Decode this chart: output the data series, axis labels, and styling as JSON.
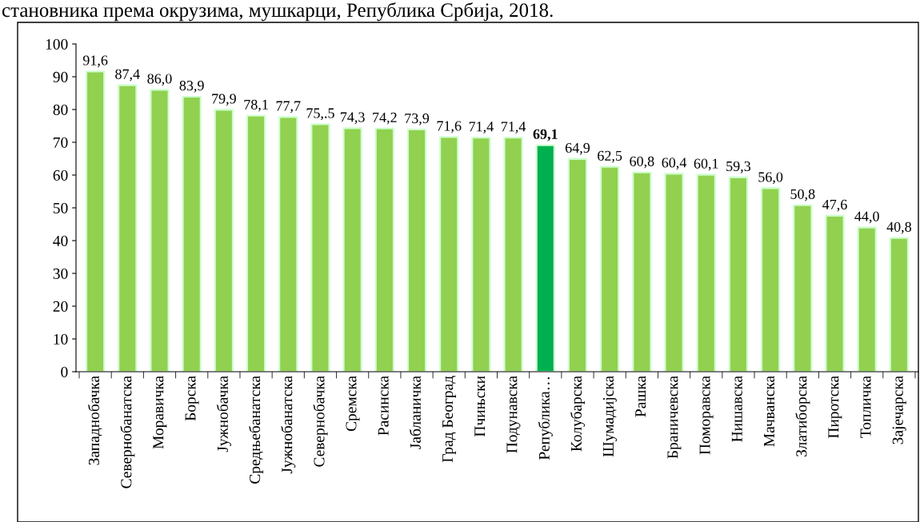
{
  "chart_data": {
    "type": "bar",
    "title": "становника према окрузима, мушкарци, Република Србија, 2018.",
    "categories": [
      "Западнобачка",
      "Севернобанатска",
      "Моравичка",
      "Борска",
      "Јужнобачка",
      "Средњебанатска",
      "Јужнобанатска",
      "Севернобачка",
      "Сремска",
      "Расинска",
      "Јабланичка",
      "Град Београд",
      "Пчињски",
      "Подунавска",
      "Република…",
      "Колубарска",
      "Шумадијска",
      "Рашка",
      "Браничевска",
      "Поморавска",
      "Нишавска",
      "Мачванска",
      "Златиборска",
      "Пиротска",
      "Топличка",
      "Зајечарска"
    ],
    "values": [
      91.6,
      87.4,
      86.0,
      83.9,
      79.9,
      78.1,
      77.7,
      75.5,
      74.3,
      74.2,
      73.9,
      71.6,
      71.4,
      71.4,
      69.1,
      64.9,
      62.5,
      60.8,
      60.4,
      60.1,
      59.3,
      56.0,
      50.8,
      47.6,
      44.0,
      40.8
    ],
    "value_labels": [
      "91,6",
      "87,4",
      "86,0",
      "83,9",
      "79,9",
      "78,1",
      "77,7",
      "75,.5",
      "74,3",
      "74,2",
      "73,9",
      "71,6",
      "71,4",
      "71,4",
      "69,1",
      "64,9",
      "62,5",
      "60,8",
      "60,4",
      "60,1",
      "59,3",
      "56,0",
      "50,8",
      "47,6",
      "44,0",
      "40,8"
    ],
    "colors": [
      "#92d050",
      "#92d050",
      "#92d050",
      "#92d050",
      "#92d050",
      "#92d050",
      "#92d050",
      "#92d050",
      "#92d050",
      "#92d050",
      "#92d050",
      "#92d050",
      "#92d050",
      "#92d050",
      "#00b050",
      "#92d050",
      "#92d050",
      "#92d050",
      "#92d050",
      "#92d050",
      "#92d050",
      "#92d050",
      "#92d050",
      "#92d050",
      "#92d050",
      "#92d050"
    ],
    "ylim": [
      0,
      100
    ],
    "yticks": [
      0,
      10,
      20,
      30,
      40,
      50,
      60,
      70,
      80,
      90,
      100
    ],
    "grid": false,
    "legend": false
  }
}
